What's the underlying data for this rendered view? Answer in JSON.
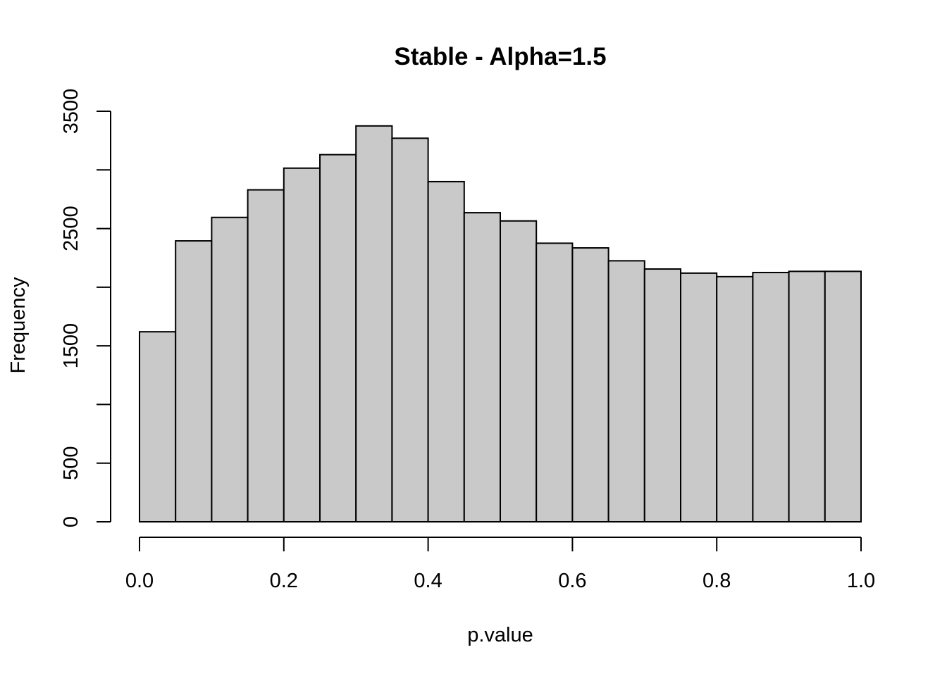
{
  "chart_data": {
    "type": "bar",
    "title": "Stable - Alpha=1.5",
    "xlabel": "p.value",
    "ylabel": "Frequency",
    "xlim": [
      0,
      1
    ],
    "ylim": [
      0,
      3500
    ],
    "bin_width": 0.05,
    "bin_edges": [
      0.0,
      0.05,
      0.1,
      0.15,
      0.2,
      0.25,
      0.3,
      0.35,
      0.4,
      0.45,
      0.5,
      0.55,
      0.6,
      0.65,
      0.7,
      0.75,
      0.8,
      0.85,
      0.9,
      0.95,
      1.0
    ],
    "values": [
      1620,
      2395,
      2595,
      2830,
      3015,
      3130,
      3375,
      3270,
      2900,
      2635,
      2565,
      2375,
      2335,
      2225,
      2155,
      2120,
      2090,
      2125,
      2135,
      2135
    ],
    "x_ticks": [
      0.0,
      0.2,
      0.4,
      0.6,
      0.8,
      1.0
    ],
    "x_tick_labels": [
      "0.0",
      "0.2",
      "0.4",
      "0.6",
      "0.8",
      "1.0"
    ],
    "y_ticks": [
      0,
      500,
      1000,
      1500,
      2000,
      2500,
      3000,
      3500
    ],
    "y_tick_labels": [
      "0",
      "500",
      "",
      "1500",
      "",
      "2500",
      "",
      "3500"
    ],
    "grid": false,
    "legend": "none",
    "bar_color": "#c9c9c9",
    "edge_color": "#000000"
  }
}
